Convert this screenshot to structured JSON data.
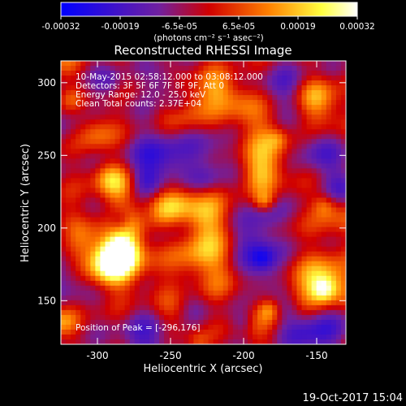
{
  "chart_data": {
    "type": "heatmap",
    "title": "Reconstructed RHESSI Image",
    "xlabel": "Heliocentric X (arcsec)",
    "ylabel": "Heliocentric Y (arcsec)",
    "xlim": [
      -325,
      -130
    ],
    "ylim": [
      120,
      315
    ],
    "xticks": [
      "-300",
      "-250",
      "-200",
      "-150"
    ],
    "yticks": [
      "150",
      "200",
      "250",
      "300"
    ],
    "colorbar": {
      "ticks": [
        "-0.00032",
        "-0.00019",
        "-6.5e-05",
        "6.5e-05",
        "0.00019",
        "0.00032"
      ],
      "unit": "(photons cm⁻² s⁻¹ asec⁻²)",
      "range": [
        -0.00032,
        0.00032
      ],
      "colors": [
        "#0000ff",
        "#7020a0",
        "#d00000",
        "#ff8000",
        "#ffff40",
        "#ffffff"
      ]
    },
    "annotations": [
      "10-May-2015 02:58:12.000 to 03:08:12.000",
      "Detectors: 3F 5F 6F 7F 8F 9F, Att 0",
      "Energy Range: 12.0 - 25.0 keV",
      "Clean     Total counts: 2.37E+04"
    ],
    "peak_label": "Position of Peak = [-296,176]",
    "grid": false
  },
  "footer": {
    "timestamp": "19-Oct-2017 15:04"
  }
}
